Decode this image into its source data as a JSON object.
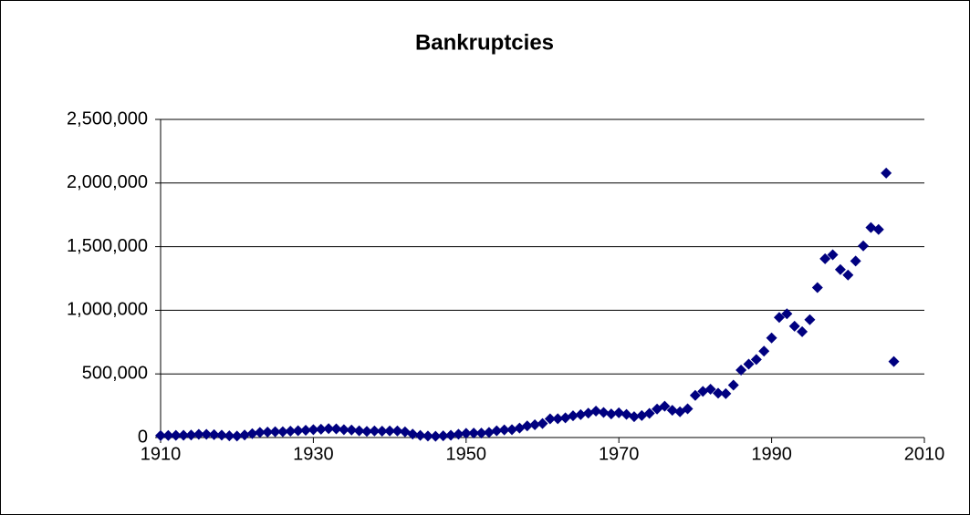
{
  "chart_data": {
    "type": "scatter",
    "title": "Bankruptcies",
    "x": [
      1910,
      1911,
      1912,
      1913,
      1914,
      1915,
      1916,
      1917,
      1918,
      1919,
      1920,
      1921,
      1922,
      1923,
      1924,
      1925,
      1926,
      1927,
      1928,
      1929,
      1930,
      1931,
      1932,
      1933,
      1934,
      1935,
      1936,
      1937,
      1938,
      1939,
      1940,
      1941,
      1942,
      1943,
      1944,
      1945,
      1946,
      1947,
      1948,
      1949,
      1950,
      1951,
      1952,
      1953,
      1954,
      1955,
      1956,
      1957,
      1958,
      1959,
      1960,
      1961,
      1962,
      1963,
      1964,
      1965,
      1966,
      1967,
      1968,
      1969,
      1970,
      1971,
      1972,
      1973,
      1974,
      1975,
      1976,
      1977,
      1978,
      1979,
      1980,
      1981,
      1982,
      1983,
      1984,
      1985,
      1986,
      1987,
      1988,
      1989,
      1990,
      1991,
      1992,
      1993,
      1994,
      1995,
      1996,
      1997,
      1998,
      1999,
      2000,
      2001,
      2002,
      2003,
      2004,
      2005,
      2006
    ],
    "values": [
      15000,
      16000,
      17000,
      18000,
      20000,
      25000,
      25000,
      22000,
      19000,
      13000,
      12000,
      20000,
      30000,
      40000,
      43000,
      46000,
      46000,
      50000,
      54000,
      57000,
      62000,
      65000,
      70000,
      68000,
      62000,
      59000,
      53000,
      48000,
      52000,
      50000,
      52000,
      52000,
      45000,
      27000,
      17000,
      12000,
      10000,
      13000,
      18000,
      26000,
      33000,
      35000,
      35000,
      40000,
      53000,
      60000,
      62000,
      74000,
      91000,
      100000,
      110000,
      147000,
      148000,
      155000,
      171000,
      180000,
      192000,
      208000,
      197000,
      185000,
      194000,
      182000,
      164000,
      173000,
      190000,
      224000,
      246000,
      214000,
      202000,
      226000,
      331000,
      363000,
      380000,
      348000,
      345000,
      412000,
      530000,
      577000,
      613000,
      679000,
      783000,
      944000,
      972000,
      875000,
      832000,
      926000,
      1178000,
      1405000,
      1436000,
      1320000,
      1277000,
      1387000,
      1506000,
      1650000,
      1635000,
      2078000,
      597000
    ],
    "color": "#000080",
    "xlim": [
      1910,
      2010
    ],
    "xticks": [
      1910,
      1930,
      1950,
      1970,
      1990,
      2010
    ],
    "ylim": [
      0,
      2500000
    ],
    "yticks": [
      0,
      {
        "value": 500000,
        "label": "500,000"
      },
      {
        "value": 1000000,
        "label": "1,000,000"
      },
      {
        "value": 1500000,
        "label": "1,500,000"
      },
      {
        "value": 2000000,
        "label": "2,000,000"
      },
      {
        "value": 2500000,
        "label": "2,500,000"
      }
    ],
    "grid": true
  }
}
